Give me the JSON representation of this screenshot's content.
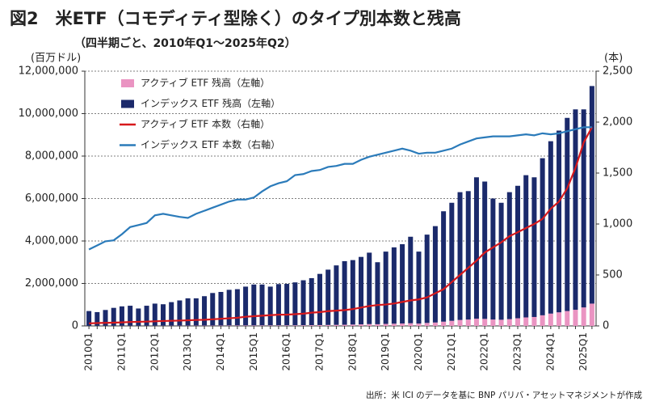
{
  "chart_data": {
    "type": "bar",
    "title": "図2　米ETF（コモディティ型除く）のタイプ別本数と残高",
    "subtitle": "（四半期ごと、2010年Q1～2025年Q2）",
    "y_label": "(百万ドル)",
    "y2_label": "(本)",
    "source": "出所：米 ICI のデータを基に BNP パリバ・アセットマネジメントが作成",
    "stacked": true,
    "categories": [
      "2010Q1",
      null,
      null,
      null,
      "2011Q1",
      null,
      null,
      null,
      "2012Q1",
      null,
      null,
      null,
      "2013Q1",
      null,
      null,
      null,
      "2014Q1",
      null,
      null,
      null,
      "2015Q1",
      null,
      null,
      null,
      "2016Q1",
      null,
      null,
      null,
      "2017Q1",
      null,
      null,
      null,
      "2018Q1",
      null,
      null,
      null,
      "2019Q1",
      null,
      null,
      null,
      "2020Q1",
      null,
      null,
      null,
      "2021Q1",
      null,
      null,
      null,
      "2022Q1",
      null,
      null,
      null,
      "2023Q1",
      null,
      null,
      null,
      "2024Q1",
      null,
      null,
      null,
      "2025Q1",
      null
    ],
    "ylim": [
      0,
      12000000
    ],
    "yticks": [
      0,
      {
        "value": 2000000,
        "label": "2,000,000"
      },
      {
        "value": 4000000,
        "label": "4,000,000"
      },
      {
        "value": 6000000,
        "label": "6,000,000"
      },
      {
        "value": 8000000,
        "label": "8,000,000"
      },
      {
        "value": 10000000,
        "label": "10,000,000"
      },
      {
        "value": 12000000,
        "label": "12,000,000"
      }
    ],
    "y2lim": [
      0,
      2500
    ],
    "y2ticks": [
      0,
      500,
      {
        "value": 1000,
        "label": "1,000"
      },
      {
        "value": 1500,
        "label": "1,500"
      },
      {
        "value": 2000,
        "label": "2,000"
      },
      {
        "value": 2500,
        "label": "2,500"
      }
    ],
    "series": [
      {
        "name": "アクティブ ETF 残高（左軸）",
        "type": "bar",
        "color": "#ea94c2",
        "values": [
          5000,
          5000,
          6000,
          7000,
          8000,
          8000,
          8000,
          9000,
          10000,
          11000,
          12000,
          13000,
          14000,
          15000,
          16000,
          17000,
          18000,
          20000,
          21000,
          22000,
          23000,
          24000,
          24000,
          25000,
          27000,
          29000,
          32000,
          35000,
          40000,
          45000,
          50000,
          55000,
          65000,
          75000,
          85000,
          80000,
          95000,
          105000,
          115000,
          125000,
          110000,
          140000,
          160000,
          200000,
          240000,
          280000,
          300000,
          340000,
          330000,
          300000,
          290000,
          320000,
          360000,
          400000,
          420000,
          500000,
          580000,
          640000,
          700000,
          760000,
          870000,
          1050000
        ]
      },
      {
        "name": "インデックス ETF 残高（左軸）",
        "type": "bar",
        "color": "#1b2a6b",
        "values": [
          695000,
          645000,
          744000,
          843000,
          912000,
          942000,
          812000,
          941000,
          1040000,
          1009000,
          1108000,
          1187000,
          1286000,
          1285000,
          1384000,
          1533000,
          1582000,
          1680000,
          1709000,
          1828000,
          1927000,
          1926000,
          1826000,
          1945000,
          1953000,
          2021000,
          2118000,
          2215000,
          2410000,
          2605000,
          2800000,
          2995000,
          3035000,
          3175000,
          3365000,
          2920000,
          3405000,
          3595000,
          3735000,
          4075000,
          3390000,
          4160000,
          4540000,
          5200000,
          5560000,
          6020000,
          6050000,
          6660000,
          6470000,
          5700000,
          5510000,
          5980000,
          6240000,
          6700000,
          6580000,
          7400000,
          8120000,
          8560000,
          9100000,
          9440000,
          9330000,
          10250000
        ]
      },
      {
        "name": "アクティブ ETF 本数（右軸）",
        "type": "line",
        "axis": "y2",
        "color": "#d7191c",
        "values": [
          25,
          28,
          30,
          32,
          35,
          38,
          40,
          42,
          45,
          48,
          50,
          52,
          55,
          58,
          60,
          65,
          70,
          75,
          80,
          90,
          95,
          100,
          105,
          110,
          110,
          115,
          120,
          130,
          135,
          145,
          150,
          155,
          165,
          180,
          195,
          205,
          210,
          220,
          235,
          250,
          260,
          280,
          320,
          360,
          430,
          500,
          570,
          640,
          720,
          770,
          820,
          880,
          920,
          960,
          1000,
          1050,
          1150,
          1220,
          1350,
          1550,
          1800,
          1950
        ]
      },
      {
        "name": "インデックス ETF 本数（右軸）",
        "type": "line",
        "axis": "y2",
        "color": "#2b7bba",
        "values": [
          750,
          790,
          830,
          840,
          900,
          970,
          990,
          1010,
          1085,
          1100,
          1085,
          1070,
          1060,
          1100,
          1130,
          1160,
          1190,
          1220,
          1240,
          1240,
          1260,
          1320,
          1370,
          1400,
          1420,
          1480,
          1490,
          1520,
          1530,
          1560,
          1570,
          1590,
          1590,
          1630,
          1660,
          1680,
          1700,
          1720,
          1740,
          1720,
          1690,
          1700,
          1700,
          1720,
          1740,
          1780,
          1810,
          1840,
          1850,
          1860,
          1860,
          1860,
          1870,
          1880,
          1870,
          1890,
          1880,
          1890,
          1910,
          1930,
          1950,
          1950
        ]
      }
    ]
  }
}
